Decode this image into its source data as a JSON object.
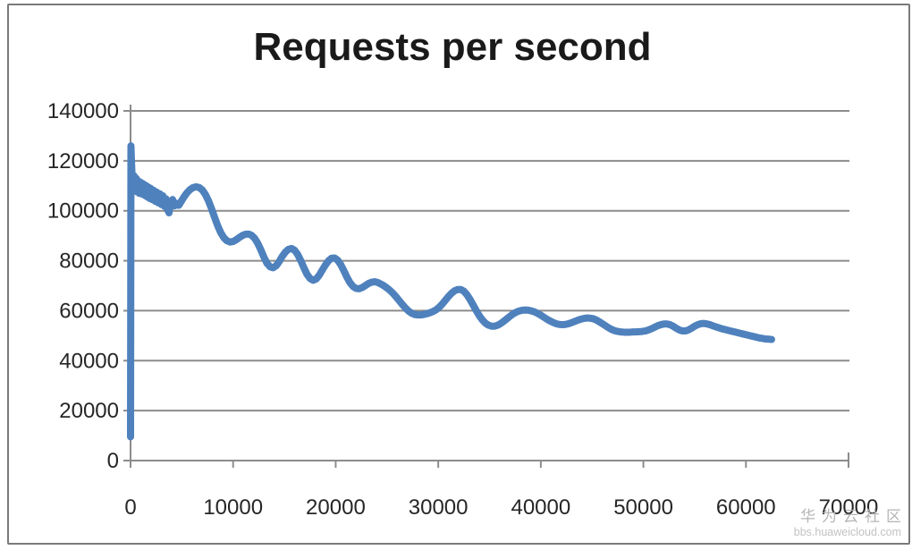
{
  "chart_data": {
    "type": "line",
    "title": "Requests per second",
    "xlabel": "",
    "ylabel": "",
    "xlim": [
      0,
      70000
    ],
    "ylim": [
      0,
      140000
    ],
    "x_ticks": [
      0,
      10000,
      20000,
      30000,
      40000,
      50000,
      60000,
      70000
    ],
    "y_ticks": [
      0,
      20000,
      40000,
      60000,
      80000,
      100000,
      120000,
      140000
    ],
    "grid": "horizontal",
    "legend": "none",
    "series": [
      {
        "name": "Requests per second",
        "color": "#4f81bd",
        "points": [
          [
            0,
            9500
          ],
          [
            40,
            126000
          ],
          [
            80,
            121000
          ],
          [
            150,
            113500
          ],
          [
            250,
            110000
          ],
          [
            350,
            114000
          ],
          [
            450,
            108500
          ],
          [
            550,
            113000
          ],
          [
            650,
            107500
          ],
          [
            750,
            112000
          ],
          [
            850,
            107000
          ],
          [
            950,
            111500
          ],
          [
            1050,
            106800
          ],
          [
            1150,
            111000
          ],
          [
            1250,
            106500
          ],
          [
            1350,
            110500
          ],
          [
            1450,
            106000
          ],
          [
            1550,
            110000
          ],
          [
            1650,
            105500
          ],
          [
            1750,
            109500
          ],
          [
            1850,
            105000
          ],
          [
            1950,
            109000
          ],
          [
            2100,
            104500
          ],
          [
            2250,
            108200
          ],
          [
            2400,
            103800
          ],
          [
            2550,
            107500
          ],
          [
            2700,
            103200
          ],
          [
            2850,
            106800
          ],
          [
            3000,
            102500
          ],
          [
            3150,
            106000
          ],
          [
            3300,
            101800
          ],
          [
            3450,
            104800
          ],
          [
            3600,
            100500
          ],
          [
            3750,
            99200
          ],
          [
            3900,
            103000
          ],
          [
            4100,
            104500
          ],
          [
            4300,
            102000
          ],
          [
            4500,
            103000
          ],
          [
            4700,
            102200
          ],
          [
            4900,
            103500
          ],
          [
            5200,
            105500
          ],
          [
            5500,
            107200
          ],
          [
            5800,
            108500
          ],
          [
            6100,
            109300
          ],
          [
            6400,
            109600
          ],
          [
            6700,
            109300
          ],
          [
            7000,
            108300
          ],
          [
            7300,
            106500
          ],
          [
            7600,
            104000
          ],
          [
            7900,
            100800
          ],
          [
            8200,
            97300
          ],
          [
            8500,
            94000
          ],
          [
            8800,
            91200
          ],
          [
            9100,
            89200
          ],
          [
            9400,
            88000
          ],
          [
            9700,
            87500
          ],
          [
            10000,
            87700
          ],
          [
            10300,
            88400
          ],
          [
            10600,
            89300
          ],
          [
            10900,
            90100
          ],
          [
            11200,
            90600
          ],
          [
            11500,
            90700
          ],
          [
            11800,
            90200
          ],
          [
            12100,
            89000
          ],
          [
            12400,
            87000
          ],
          [
            12700,
            84400
          ],
          [
            13000,
            81500
          ],
          [
            13300,
            79000
          ],
          [
            13600,
            77600
          ],
          [
            13900,
            77200
          ],
          [
            14200,
            78000
          ],
          [
            14500,
            79700
          ],
          [
            14800,
            81800
          ],
          [
            15100,
            83500
          ],
          [
            15400,
            84600
          ],
          [
            15700,
            84900
          ],
          [
            16000,
            84200
          ],
          [
            16300,
            82500
          ],
          [
            16600,
            80000
          ],
          [
            16900,
            77200
          ],
          [
            17200,
            74600
          ],
          [
            17500,
            72900
          ],
          [
            17800,
            72200
          ],
          [
            18100,
            72700
          ],
          [
            18400,
            74200
          ],
          [
            18700,
            76300
          ],
          [
            19000,
            78300
          ],
          [
            19300,
            80000
          ],
          [
            19600,
            81000
          ],
          [
            19900,
            81100
          ],
          [
            20200,
            80200
          ],
          [
            20500,
            78400
          ],
          [
            20800,
            76000
          ],
          [
            21100,
            73400
          ],
          [
            21400,
            71200
          ],
          [
            21700,
            69700
          ],
          [
            22000,
            68900
          ],
          [
            22300,
            68800
          ],
          [
            22600,
            69300
          ],
          [
            22900,
            70100
          ],
          [
            23200,
            70900
          ],
          [
            23500,
            71400
          ],
          [
            23800,
            71600
          ],
          [
            24100,
            71300
          ],
          [
            24400,
            70700
          ],
          [
            24700,
            70000
          ],
          [
            25000,
            69100
          ],
          [
            25300,
            68100
          ],
          [
            25600,
            66900
          ],
          [
            25900,
            65500
          ],
          [
            26200,
            64000
          ],
          [
            26500,
            62500
          ],
          [
            26800,
            61100
          ],
          [
            27100,
            59900
          ],
          [
            27400,
            59000
          ],
          [
            27700,
            58500
          ],
          [
            28000,
            58300
          ],
          [
            28300,
            58300
          ],
          [
            28600,
            58500
          ],
          [
            28900,
            58800
          ],
          [
            29200,
            59200
          ],
          [
            29500,
            59700
          ],
          [
            29800,
            60400
          ],
          [
            30100,
            61400
          ],
          [
            30400,
            62700
          ],
          [
            30700,
            64200
          ],
          [
            31000,
            65700
          ],
          [
            31300,
            67000
          ],
          [
            31600,
            68000
          ],
          [
            31900,
            68500
          ],
          [
            32200,
            68500
          ],
          [
            32500,
            67800
          ],
          [
            32800,
            66400
          ],
          [
            33100,
            64500
          ],
          [
            33400,
            62300
          ],
          [
            33700,
            60100
          ],
          [
            34000,
            58000
          ],
          [
            34300,
            56300
          ],
          [
            34600,
            55000
          ],
          [
            34900,
            54200
          ],
          [
            35200,
            53800
          ],
          [
            35500,
            53800
          ],
          [
            35800,
            54200
          ],
          [
            36100,
            54900
          ],
          [
            36400,
            55800
          ],
          [
            36700,
            56800
          ],
          [
            37000,
            57800
          ],
          [
            37300,
            58700
          ],
          [
            37600,
            59400
          ],
          [
            37900,
            59900
          ],
          [
            38200,
            60200
          ],
          [
            38500,
            60300
          ],
          [
            38800,
            60200
          ],
          [
            39100,
            59900
          ],
          [
            39400,
            59500
          ],
          [
            39700,
            58900
          ],
          [
            40000,
            58200
          ],
          [
            40300,
            57400
          ],
          [
            40600,
            56600
          ],
          [
            40900,
            55900
          ],
          [
            41200,
            55300
          ],
          [
            41500,
            54800
          ],
          [
            41800,
            54500
          ],
          [
            42100,
            54400
          ],
          [
            42400,
            54500
          ],
          [
            42700,
            54800
          ],
          [
            43000,
            55200
          ],
          [
            43300,
            55700
          ],
          [
            43600,
            56200
          ],
          [
            43900,
            56600
          ],
          [
            44200,
            56900
          ],
          [
            44500,
            57100
          ],
          [
            44800,
            57000
          ],
          [
            45100,
            56800
          ],
          [
            45400,
            56300
          ],
          [
            45700,
            55600
          ],
          [
            46000,
            54800
          ],
          [
            46300,
            54000
          ],
          [
            46600,
            53200
          ],
          [
            46900,
            52500
          ],
          [
            47200,
            52000
          ],
          [
            47500,
            51700
          ],
          [
            47800,
            51500
          ],
          [
            48100,
            51400
          ],
          [
            48400,
            51400
          ],
          [
            48700,
            51400
          ],
          [
            49000,
            51500
          ],
          [
            49300,
            51500
          ],
          [
            49600,
            51600
          ],
          [
            49900,
            51700
          ],
          [
            50200,
            51900
          ],
          [
            50500,
            52300
          ],
          [
            50800,
            52800
          ],
          [
            51100,
            53400
          ],
          [
            51400,
            54000
          ],
          [
            51700,
            54400
          ],
          [
            52000,
            54700
          ],
          [
            52300,
            54700
          ],
          [
            52600,
            54400
          ],
          [
            52900,
            53800
          ],
          [
            53200,
            53000
          ],
          [
            53500,
            52300
          ],
          [
            53800,
            51900
          ],
          [
            54100,
            51900
          ],
          [
            54400,
            52300
          ],
          [
            54700,
            53000
          ],
          [
            55000,
            53800
          ],
          [
            55300,
            54400
          ],
          [
            55600,
            54800
          ],
          [
            55900,
            54900
          ],
          [
            56200,
            54700
          ],
          [
            56500,
            54400
          ],
          [
            56800,
            53900
          ],
          [
            57100,
            53500
          ],
          [
            57400,
            53100
          ],
          [
            57700,
            52700
          ],
          [
            58000,
            52400
          ],
          [
            58300,
            52100
          ],
          [
            58600,
            51800
          ],
          [
            58900,
            51500
          ],
          [
            59200,
            51200
          ],
          [
            59500,
            50900
          ],
          [
            59800,
            50600
          ],
          [
            60100,
            50300
          ],
          [
            60400,
            50000
          ],
          [
            60700,
            49700
          ],
          [
            61000,
            49400
          ],
          [
            61300,
            49100
          ],
          [
            61600,
            48900
          ],
          [
            61900,
            48700
          ],
          [
            62200,
            48600
          ],
          [
            62500,
            48500
          ]
        ]
      }
    ]
  },
  "watermark": {
    "line1": "华为云社区",
    "line2": "bbs.huaweicloud.com"
  },
  "colors": {
    "line": "#4f81bd",
    "grid": "#8c8c8c",
    "axis_text": "#262626",
    "title": "#1a1a1a",
    "watermark": "#b5b5b5",
    "watermark_url": "#c2c2c2",
    "border": "#7a7a7a",
    "background": "#ffffff"
  }
}
